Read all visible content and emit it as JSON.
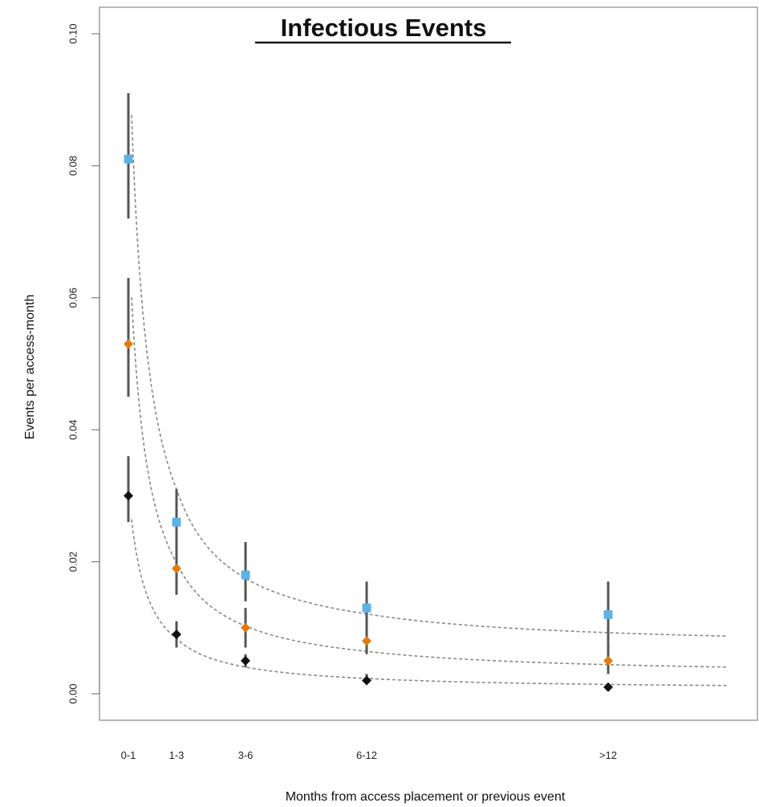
{
  "chart_data": {
    "type": "scatter",
    "title": "Infectious Events",
    "xlabel": "Months from access placement or previous event",
    "ylabel": "Events per access-month",
    "categories": [
      "0-1",
      "1-3",
      "3-6",
      "6-12",
      ">12"
    ],
    "x_positions": [
      0.5,
      2,
      4.5,
      9,
      19
    ],
    "xlim": [
      0,
      24
    ],
    "ylim": [
      0,
      0.1
    ],
    "yticks": [
      "0.00",
      "0.02",
      "0.04",
      "0.06",
      "0.08",
      "0.10"
    ],
    "ytick_values": [
      0,
      0.02,
      0.04,
      0.06,
      0.08,
      0.1
    ],
    "grid": false,
    "legend": "none",
    "series": [
      {
        "color": "#5fb2e6",
        "marker": "square",
        "values": [
          0.081,
          0.026,
          0.018,
          0.013,
          0.012
        ],
        "ci_low": [
          0.072,
          0.021,
          0.014,
          0.01,
          0.008
        ],
        "ci_high": [
          0.091,
          0.031,
          0.023,
          0.017,
          0.017
        ],
        "fit": {
          "a": 0.0067,
          "b": 0.0486
        }
      },
      {
        "color": "#e07b10",
        "marker": "diamond",
        "values": [
          0.053,
          0.019,
          0.01,
          0.008,
          0.005
        ],
        "ci_low": [
          0.045,
          0.015,
          0.007,
          0.006,
          0.003
        ],
        "ci_high": [
          0.063,
          0.023,
          0.013,
          0.011,
          0.008
        ],
        "fit": {
          "a": 0.0026,
          "b": 0.0345
        }
      },
      {
        "color": "#111111",
        "marker": "diamond",
        "values": [
          0.03,
          0.009,
          0.005,
          0.002,
          0.001
        ],
        "ci_low": [
          0.026,
          0.007,
          0.004,
          0.0015,
          0.0007
        ],
        "ci_high": [
          0.036,
          0.011,
          0.006,
          0.003,
          0.0016
        ],
        "fit": {
          "a": 0.0006,
          "b": 0.0155
        }
      }
    ],
    "fit_line_style": "dashed",
    "fit_line_color": "#888888",
    "errorbar_color": "#555555"
  }
}
